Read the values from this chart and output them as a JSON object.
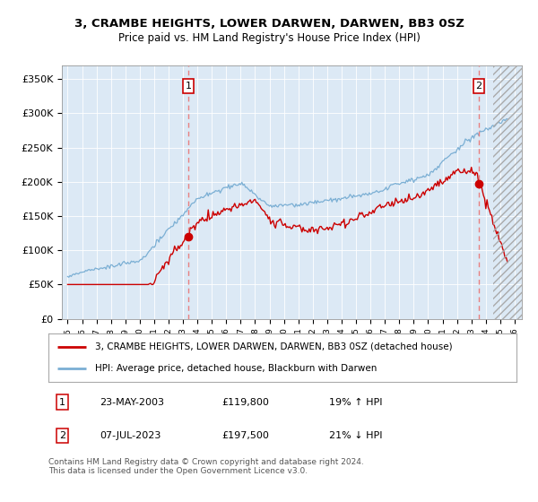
{
  "title": "3, CRAMBE HEIGHTS, LOWER DARWEN, DARWEN, BB3 0SZ",
  "subtitle": "Price paid vs. HM Land Registry's House Price Index (HPI)",
  "legend_line1": "3, CRAMBE HEIGHTS, LOWER DARWEN, DARWEN, BB3 0SZ (detached house)",
  "legend_line2": "HPI: Average price, detached house, Blackburn with Darwen",
  "annotation1_date": "23-MAY-2003",
  "annotation1_price": "£119,800",
  "annotation1_hpi": "19% ↑ HPI",
  "annotation2_date": "07-JUL-2023",
  "annotation2_price": "£197,500",
  "annotation2_hpi": "21% ↓ HPI",
  "footnote": "Contains HM Land Registry data © Crown copyright and database right 2024.\nThis data is licensed under the Open Government Licence v3.0.",
  "ylim": [
    0,
    370000
  ],
  "yticks": [
    0,
    50000,
    100000,
    150000,
    200000,
    250000,
    300000,
    350000
  ],
  "ytick_labels": [
    "£0",
    "£50K",
    "£100K",
    "£150K",
    "£200K",
    "£250K",
    "£300K",
    "£350K"
  ],
  "background_color": "#dce9f5",
  "hpi_color": "#7bafd4",
  "price_color": "#cc0000",
  "vline_color": "#e88080",
  "sale1_date_num": 2003.38,
  "sale1_price": 119800,
  "sale2_date_num": 2023.52,
  "sale2_price": 197500,
  "hatch_start": 2024.5,
  "xlim_left": 1994.6,
  "xlim_right": 2026.5
}
